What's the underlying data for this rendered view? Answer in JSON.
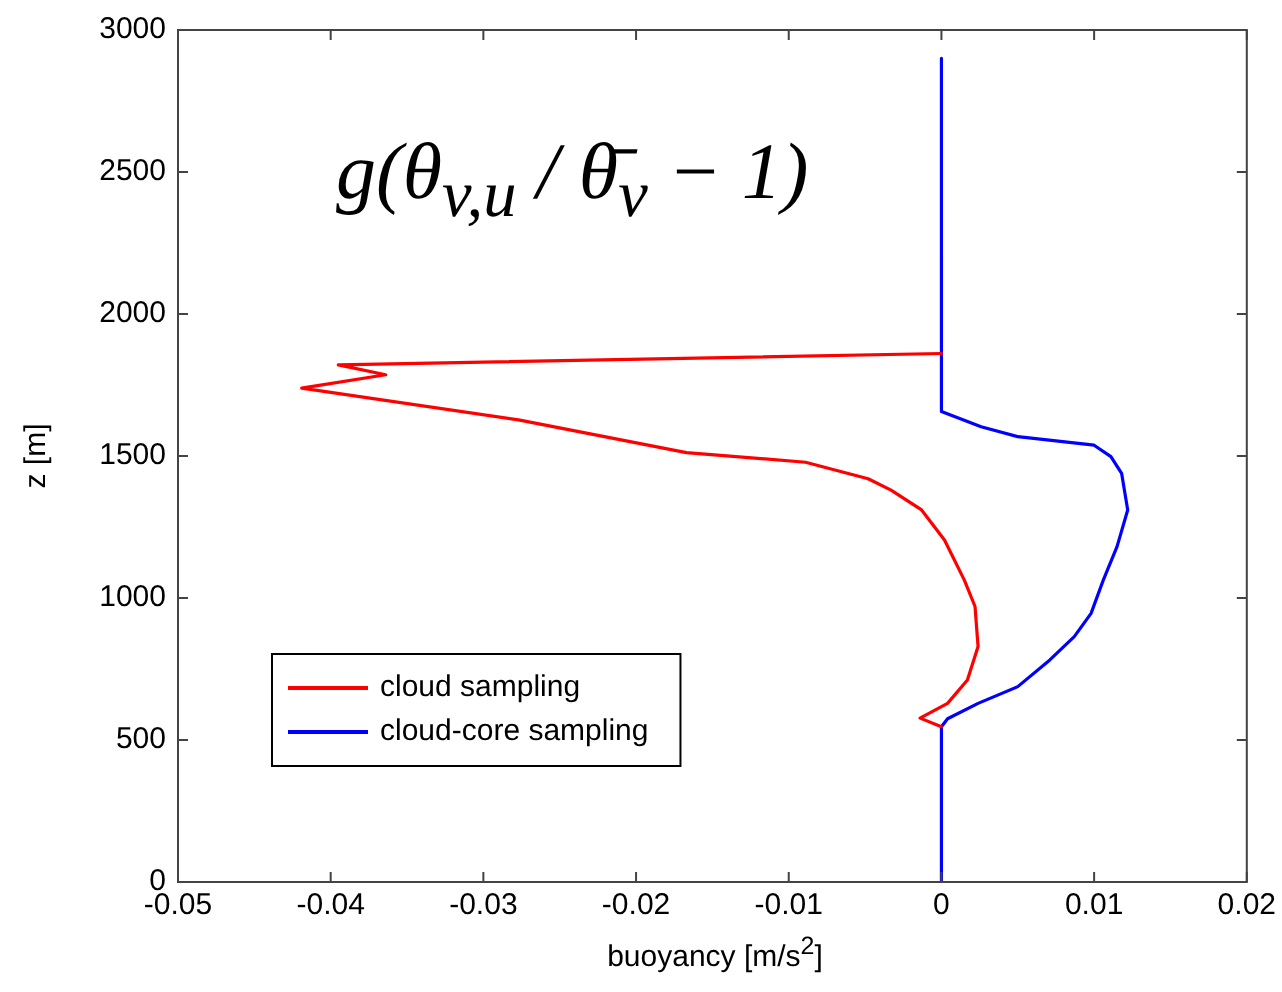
{
  "chart_data": {
    "type": "line",
    "xlabel": "buoyancy [m/s$^{2}$]",
    "ylabel": "z [m]",
    "annotations": [
      "g(θ$_{v,u}$ / θ̄$_{v}$ − 1)"
    ],
    "xlim": [
      -0.05,
      0.02
    ],
    "xticks": [
      -0.05,
      -0.04,
      -0.03,
      -0.02,
      -0.01,
      0,
      0.01,
      0.02
    ],
    "ylim": [
      0,
      3000
    ],
    "yticks": [
      0,
      500,
      1000,
      1500,
      2000,
      2500,
      3000
    ],
    "grid": false,
    "legend": "bottom left",
    "marker": "none",
    "line_style": "solid",
    "series": [
      {
        "name": "cloud sampling",
        "color": "#ff0000",
        "x": [
          0,
          -0.0014,
          0.0004,
          0.0017,
          0.0024,
          0.0022,
          0.0015,
          0.0002,
          -0.0013,
          -0.0033,
          -0.0048,
          -0.0089,
          -0.0167,
          -0.0277,
          -0.0419,
          -0.0364,
          -0.0395,
          0
        ],
        "values": [
          547,
          577,
          629,
          711,
          829,
          970,
          1063,
          1204,
          1310,
          1380,
          1420,
          1478,
          1512,
          1627,
          1739,
          1786,
          1821,
          1861
        ]
      },
      {
        "name": "cloud-core sampling",
        "color": "#0000ff",
        "x": [
          0,
          0,
          0.0004,
          0.0024,
          0.005,
          0.0071,
          0.0087,
          0.0098,
          0.0106,
          0.0115,
          0.0122,
          0.0118,
          0.0111,
          0.01,
          0.005,
          0.0026,
          0,
          0
        ],
        "values": [
          0,
          547,
          575,
          629,
          688,
          782,
          864,
          946,
          1063,
          1181,
          1310,
          1439,
          1498,
          1538,
          1568,
          1603,
          1657,
          2900
        ]
      }
    ]
  }
}
